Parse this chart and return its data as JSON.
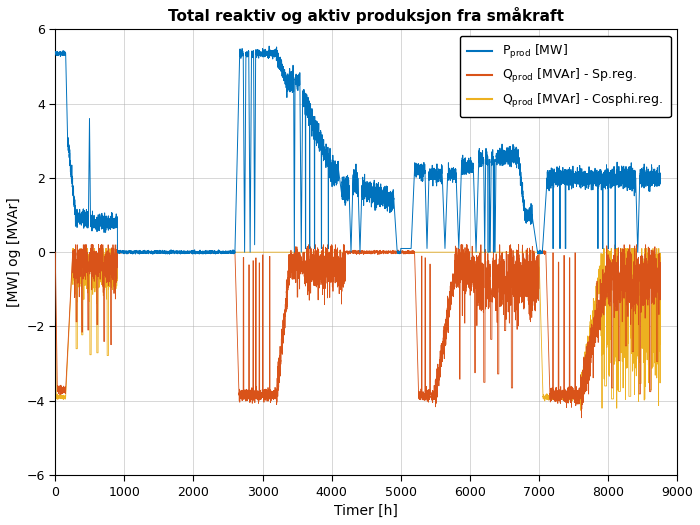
{
  "title": "Total reaktiv og aktiv produksjon fra småkraft",
  "xlabel": "Timer [h]",
  "ylabel": "[MW] og [MVAr]",
  "xlim": [
    0,
    9000
  ],
  "ylim": [
    -6,
    6
  ],
  "yticks": [
    -6,
    -4,
    -2,
    0,
    2,
    4,
    6
  ],
  "xticks": [
    0,
    1000,
    2000,
    3000,
    4000,
    5000,
    6000,
    7000,
    8000,
    9000
  ],
  "p_color": "#0072BD",
  "q_sp_color": "#D95319",
  "q_cos_color": "#EDB120",
  "background_color": "#FFFFFF",
  "grid_color": "#b0b0b0",
  "title_fontsize": 11,
  "axis_fontsize": 10,
  "legend_fontsize": 9
}
